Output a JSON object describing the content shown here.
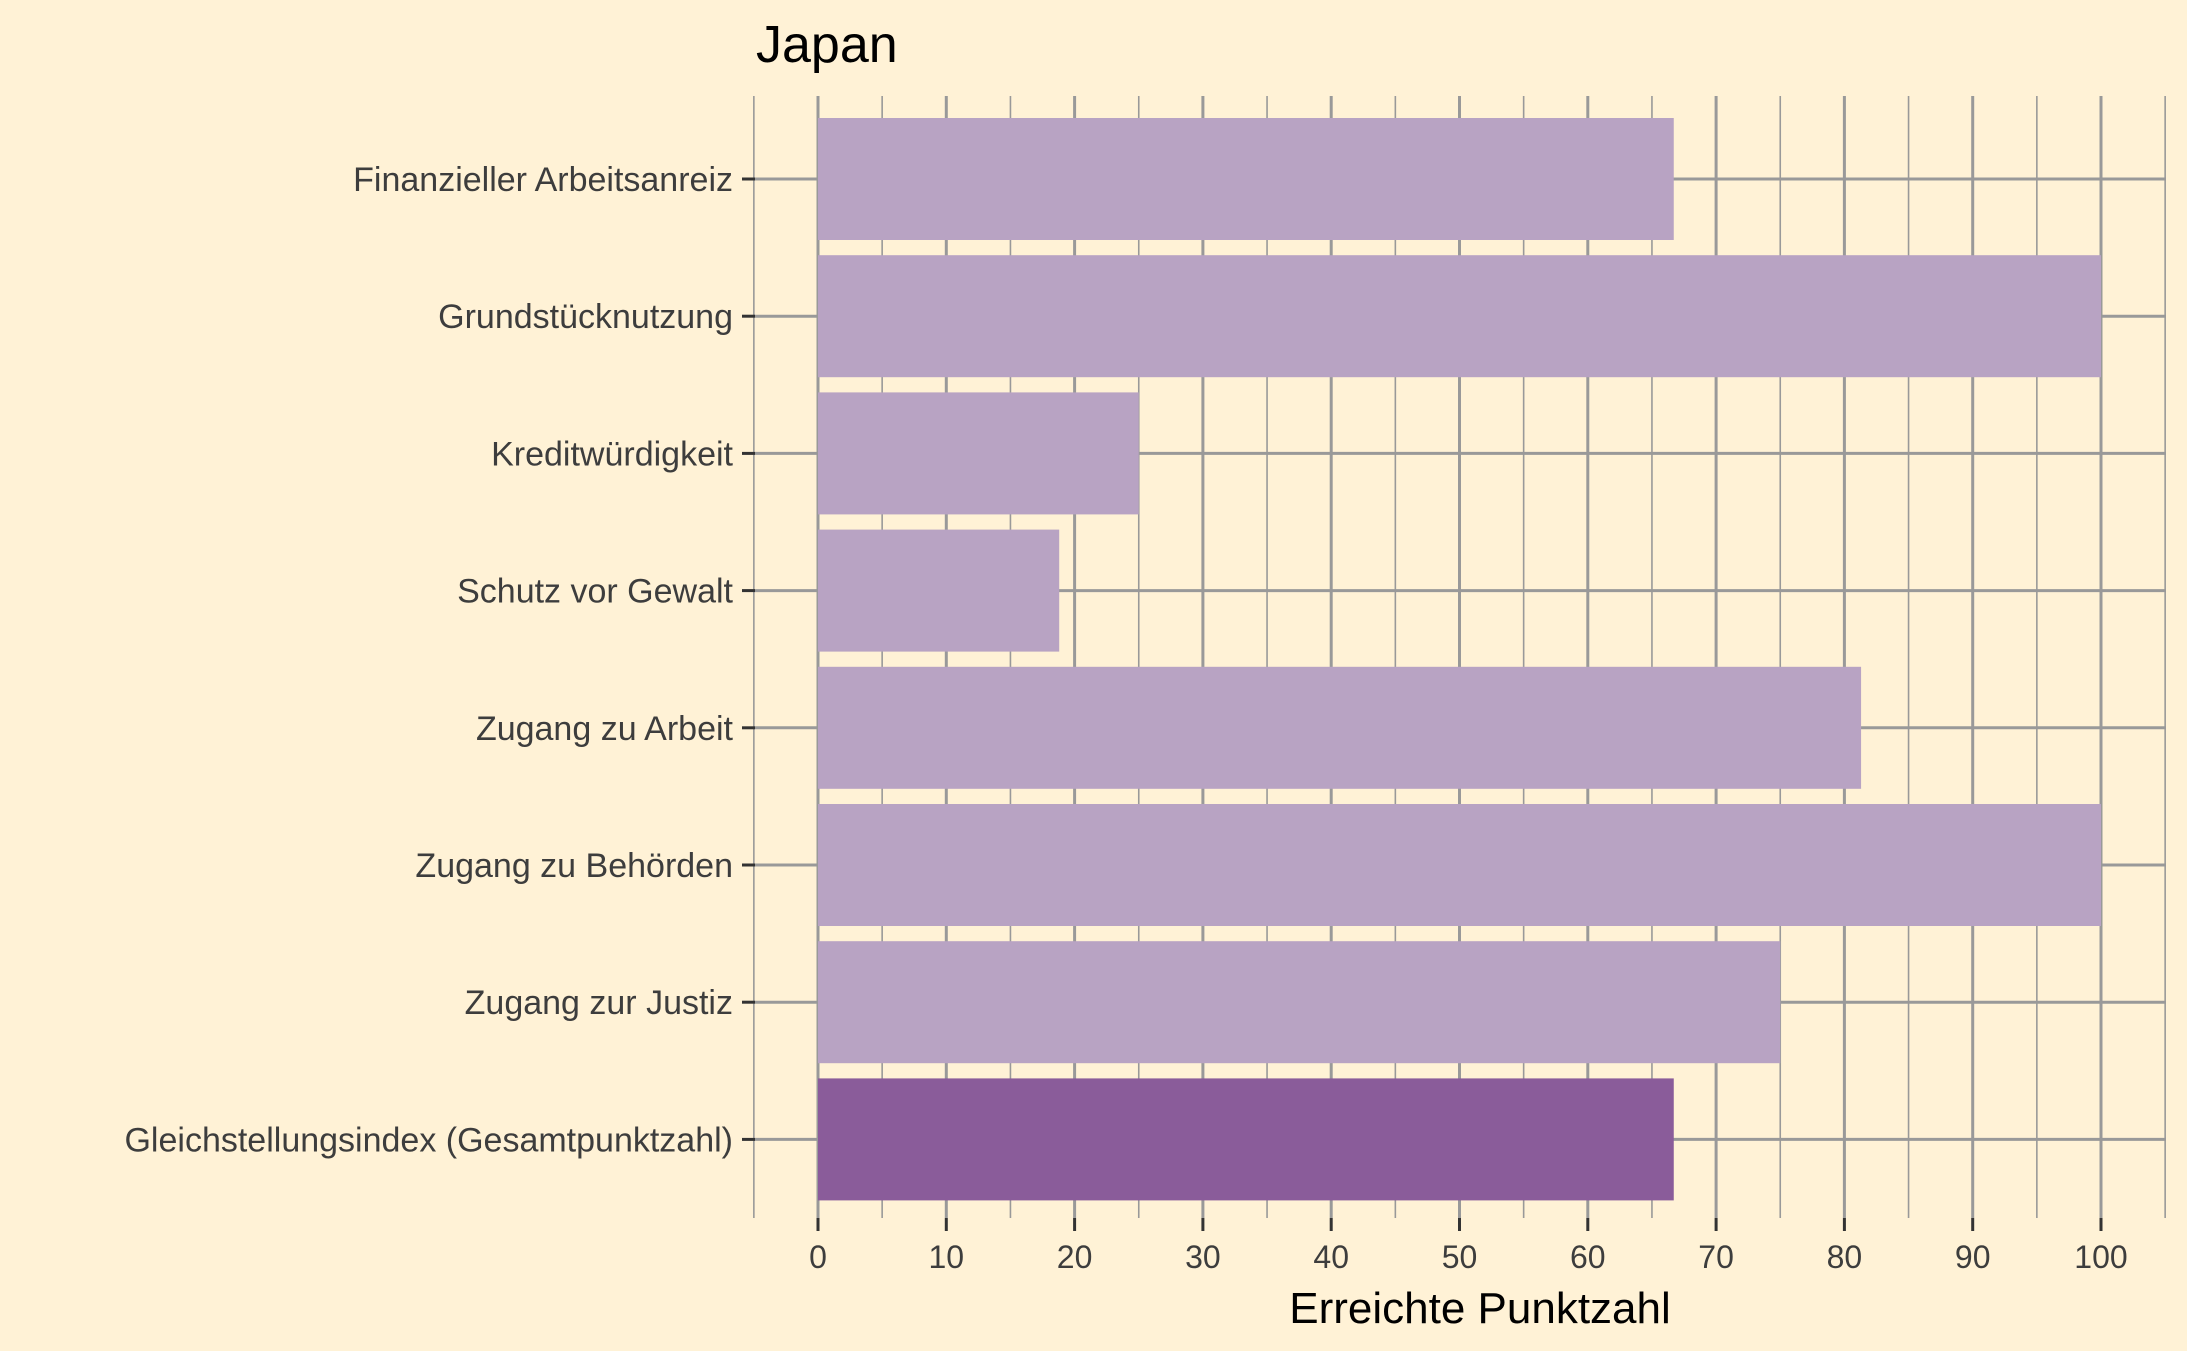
{
  "chart_data": {
    "type": "bar",
    "orientation": "horizontal",
    "title": "Japan",
    "xlabel": "Erreichte Punktzahl",
    "ylabel": "",
    "xlim": [
      0,
      100
    ],
    "x_ticks": [
      "0",
      "10",
      "20",
      "30",
      "40",
      "50",
      "60",
      "70",
      "80",
      "90",
      "100"
    ],
    "grid": true,
    "categories": [
      "Finanzieller Arbeitsanreiz",
      "Grundstücknutzung",
      "Kreditwürdigkeit",
      "Schutz vor Gewalt",
      "Zugang zu Arbeit",
      "Zugang zu Behörden",
      "Zugang zur Justiz",
      "Gleichstellungsindex (Gesamtpunktzahl)"
    ],
    "values": [
      66.7,
      100,
      25,
      18.8,
      81.3,
      100,
      75,
      66.7
    ],
    "bar_colors": [
      "#B8A3C3",
      "#B8A3C3",
      "#B8A3C3",
      "#B8A3C3",
      "#B8A3C3",
      "#B8A3C3",
      "#B8A3C3",
      "#8A5C9A"
    ],
    "colors": {
      "background": "#FFF2D6",
      "grid": "#999999",
      "bar_light": "#B8A3C3",
      "bar_dark": "#8A5C9A"
    }
  }
}
